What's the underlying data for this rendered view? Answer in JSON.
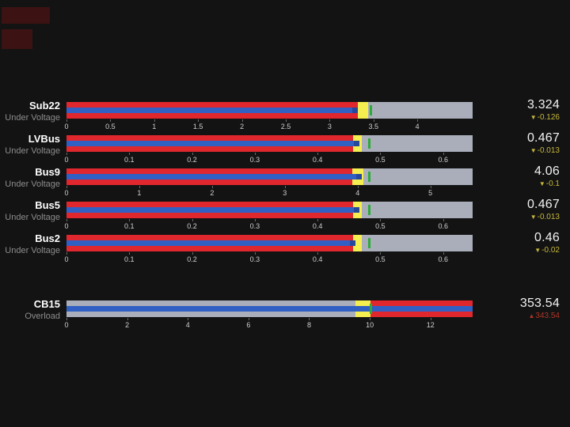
{
  "colors": {
    "background": "#131313",
    "red": "#df272d",
    "yellow": "#f5ee50",
    "gray": "#a9aeba",
    "blue": "#3160c4",
    "blue_cap": "#26479c",
    "green": "#2fa93c",
    "delta_down": "#c7b83a",
    "delta_up": "#b03427",
    "value_text": "#f2f2f2",
    "name_text": "#ffffff",
    "alarm_text": "#8d8d8d",
    "tick_text": "#cfcfcf",
    "artifact_red": "#3c1212"
  },
  "icons": {
    "arrow_down_glyph": "▼",
    "arrow_up_glyph": "▲"
  },
  "chart_data": {
    "type": "bullet",
    "legend_position": "none",
    "grid": false,
    "gauges": [
      {
        "name": "Sub22",
        "alarm": "Under Voltage",
        "value": 3.324,
        "value_label": "3.324",
        "delta_label": "-0.126",
        "delta_dir": "down",
        "axis_max": 4.63,
        "target": 3.47,
        "clipped": false,
        "bands": [
          {
            "color": "red",
            "from": 0,
            "to": 3.32
          },
          {
            "color": "yellow",
            "from": 3.32,
            "to": 3.44
          },
          {
            "color": "gray",
            "from": 3.44,
            "to": 4.63
          }
        ],
        "ticks": [
          0,
          0.5,
          1,
          1.5,
          2,
          2.5,
          3,
          3.5,
          4
        ],
        "tick_labels": [
          "0",
          "0.5",
          "1",
          "1.5",
          "2",
          "2.5",
          "3",
          "3.5",
          "4"
        ]
      },
      {
        "name": "LVBus",
        "alarm": "Under Voltage",
        "value": 0.467,
        "value_label": "0.467",
        "delta_label": "-0.013",
        "delta_dir": "down",
        "axis_max": 0.647,
        "target": 0.482,
        "clipped": false,
        "bands": [
          {
            "color": "red",
            "from": 0,
            "to": 0.456
          },
          {
            "color": "yellow",
            "from": 0.456,
            "to": 0.471
          },
          {
            "color": "gray",
            "from": 0.471,
            "to": 0.647
          }
        ],
        "ticks": [
          0,
          0.1,
          0.2,
          0.3,
          0.4,
          0.5,
          0.6
        ],
        "tick_labels": [
          "0",
          "0.1",
          "0.2",
          "0.3",
          "0.4",
          "0.5",
          "0.6"
        ]
      },
      {
        "name": "Bus9",
        "alarm": "Under Voltage",
        "value": 4.06,
        "value_label": "4.06",
        "delta_label": "-0.1",
        "delta_dir": "down",
        "axis_max": 5.58,
        "target": 4.16,
        "clipped": false,
        "bands": [
          {
            "color": "red",
            "from": 0,
            "to": 3.93
          },
          {
            "color": "yellow",
            "from": 3.93,
            "to": 4.08
          },
          {
            "color": "gray",
            "from": 4.08,
            "to": 5.58
          }
        ],
        "ticks": [
          0,
          1,
          2,
          3,
          4,
          5
        ],
        "tick_labels": [
          "0",
          "1",
          "2",
          "3",
          "4",
          "5"
        ]
      },
      {
        "name": "Bus5",
        "alarm": "Under Voltage",
        "value": 0.467,
        "value_label": "0.467",
        "delta_label": "-0.013",
        "delta_dir": "down",
        "axis_max": 0.647,
        "target": 0.482,
        "clipped": false,
        "bands": [
          {
            "color": "red",
            "from": 0,
            "to": 0.456
          },
          {
            "color": "yellow",
            "from": 0.456,
            "to": 0.471
          },
          {
            "color": "gray",
            "from": 0.471,
            "to": 0.647
          }
        ],
        "ticks": [
          0,
          0.1,
          0.2,
          0.3,
          0.4,
          0.5,
          0.6
        ],
        "tick_labels": [
          "0",
          "0.1",
          "0.2",
          "0.3",
          "0.4",
          "0.5",
          "0.6"
        ]
      },
      {
        "name": "Bus2",
        "alarm": "Under Voltage",
        "value": 0.46,
        "value_label": "0.46",
        "delta_label": "-0.02",
        "delta_dir": "down",
        "axis_max": 0.647,
        "target": 0.482,
        "clipped": false,
        "bands": [
          {
            "color": "red",
            "from": 0,
            "to": 0.456
          },
          {
            "color": "yellow",
            "from": 0.456,
            "to": 0.471
          },
          {
            "color": "gray",
            "from": 0.471,
            "to": 0.647
          }
        ],
        "ticks": [
          0,
          0.1,
          0.2,
          0.3,
          0.4,
          0.5,
          0.6
        ],
        "tick_labels": [
          "0",
          "0.1",
          "0.2",
          "0.3",
          "0.4",
          "0.5",
          "0.6"
        ]
      },
      {
        "name": "CB15",
        "alarm": "Overload",
        "value": 353.54,
        "value_label": "353.54",
        "delta_label": "343.54",
        "delta_dir": "up",
        "axis_max": 13.39,
        "target": 10.02,
        "clipped": true,
        "bands": [
          {
            "color": "gray",
            "from": 0,
            "to": 9.52
          },
          {
            "color": "yellow",
            "from": 9.52,
            "to": 10.02
          },
          {
            "color": "red",
            "from": 10.02,
            "to": 13.39
          }
        ],
        "ticks": [
          0,
          2,
          4,
          6,
          8,
          10,
          12
        ],
        "tick_labels": [
          "0",
          "2",
          "4",
          "6",
          "8",
          "10",
          "12"
        ]
      }
    ]
  }
}
